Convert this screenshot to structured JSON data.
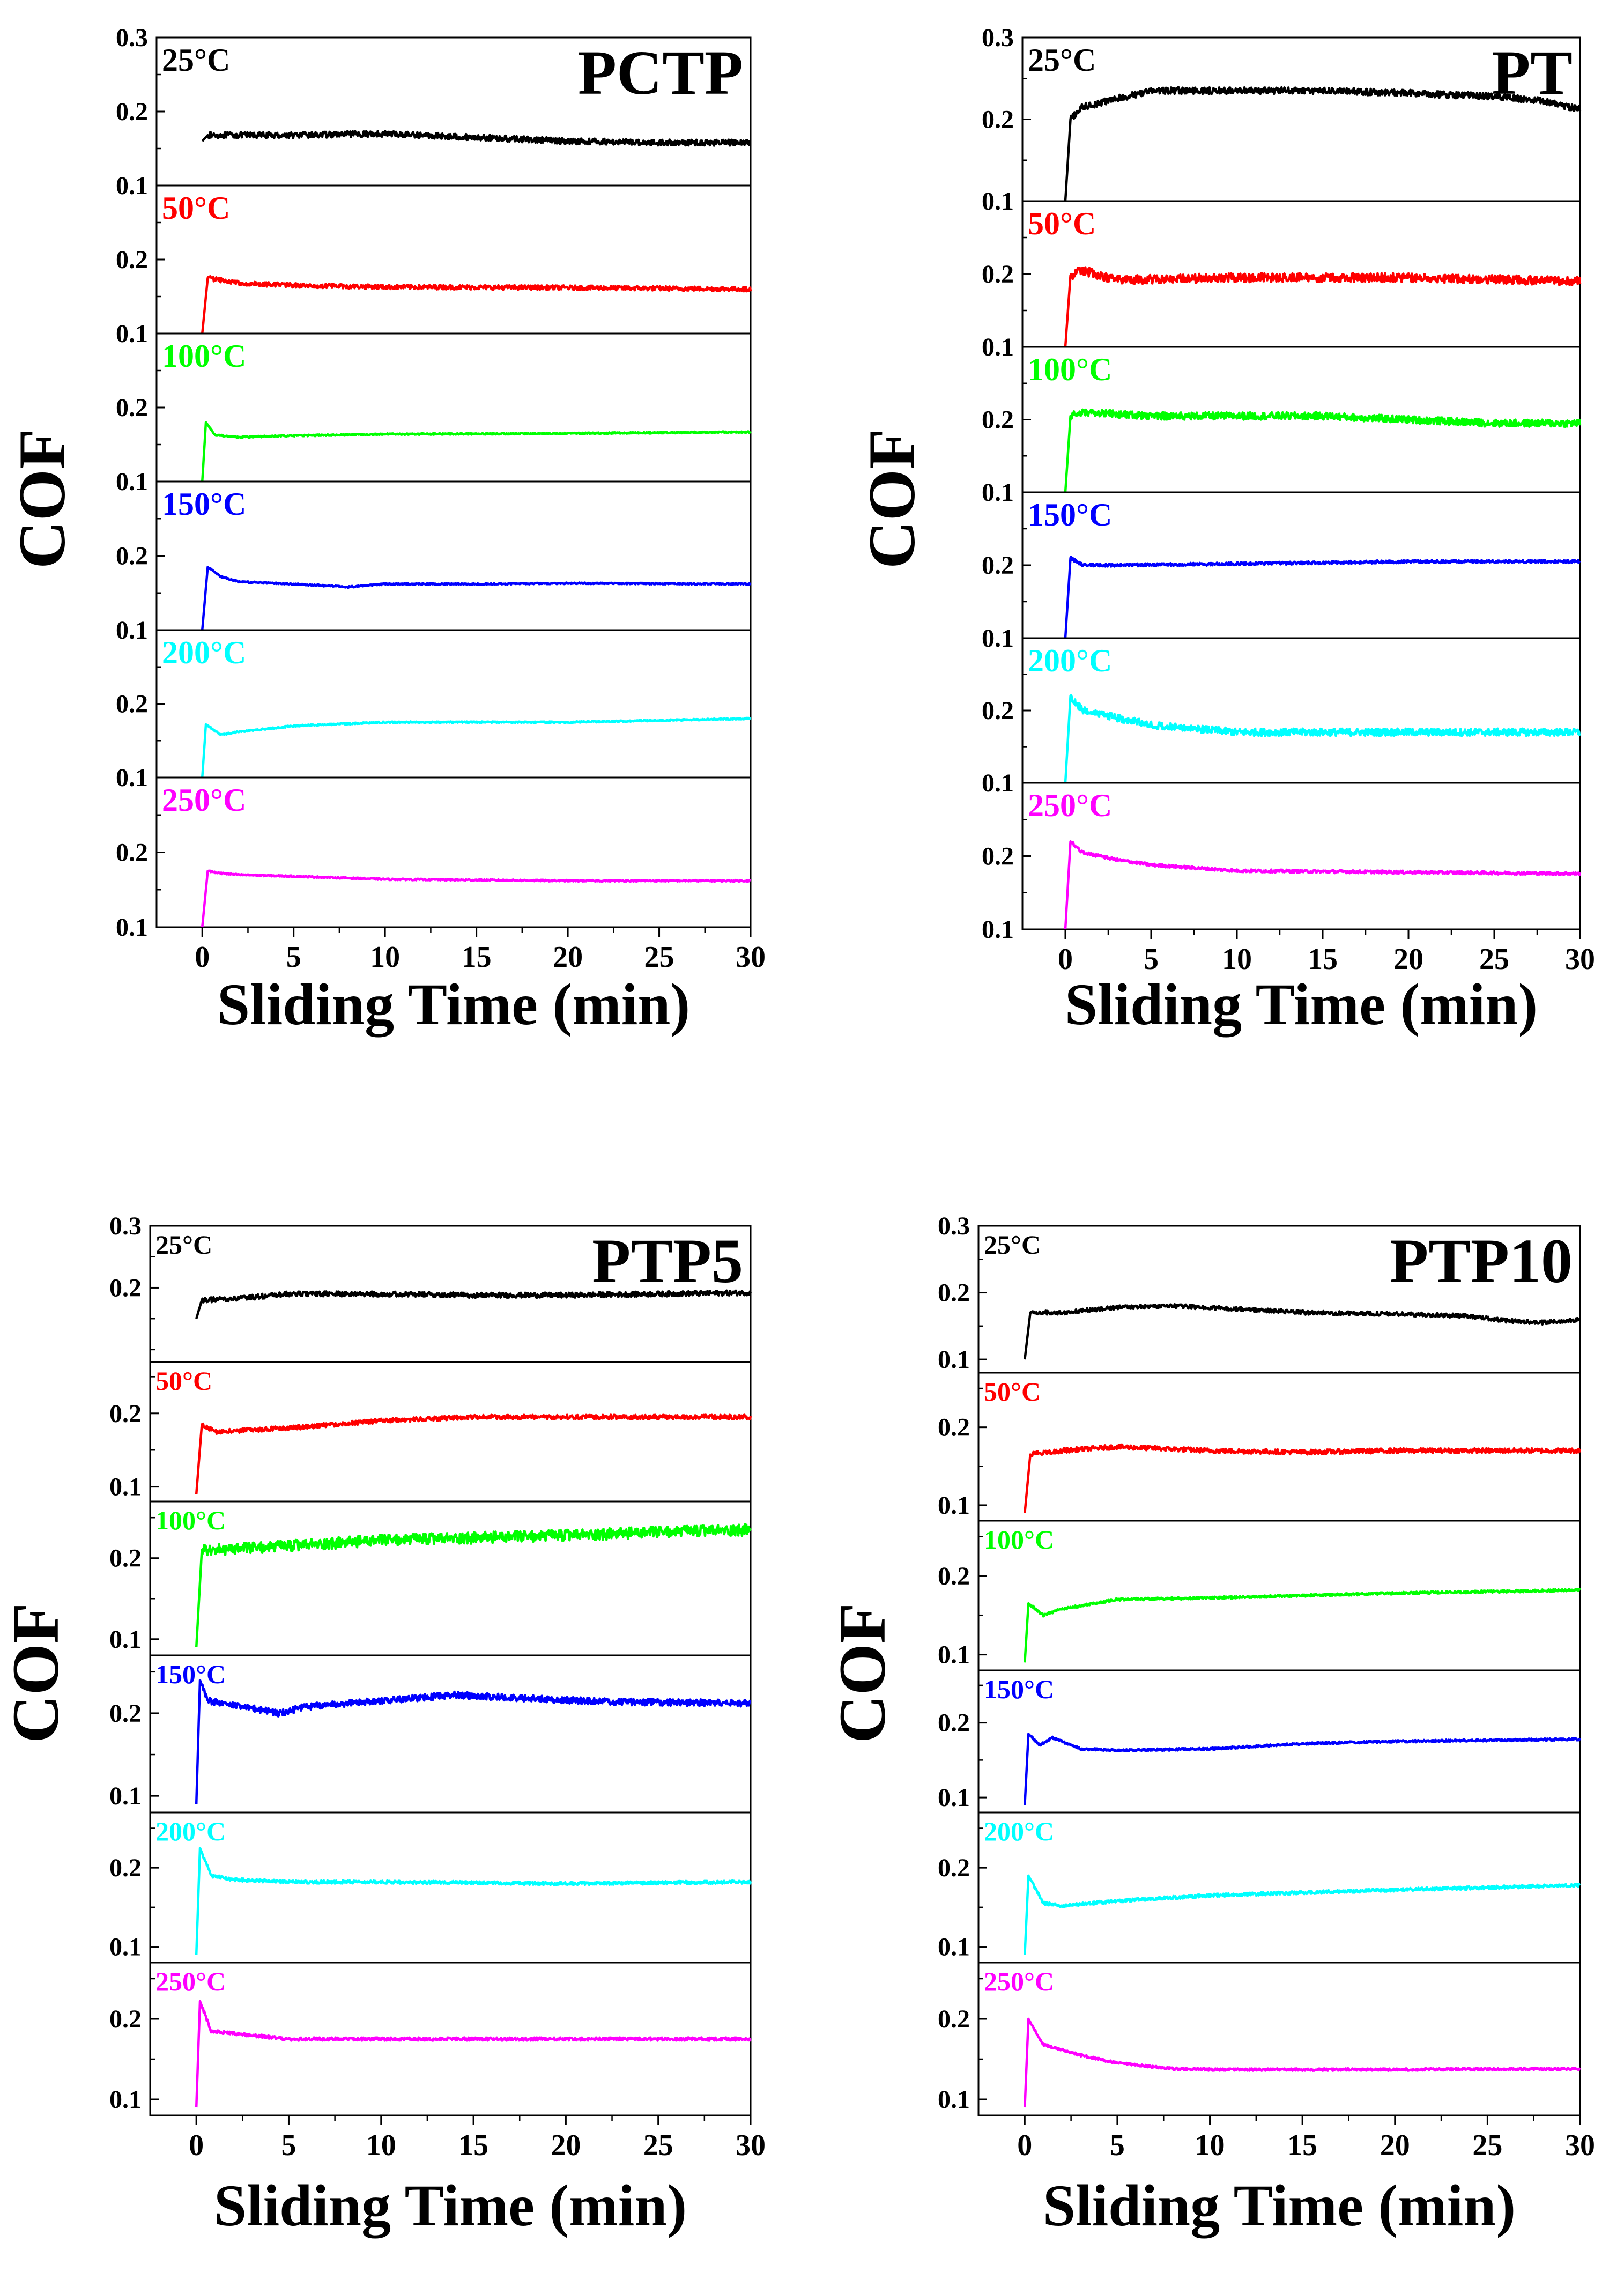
{
  "chart_data": [
    {
      "type": "line",
      "title": "PCTP",
      "xlabel": "Sliding Time (min)",
      "ylabel": "COF",
      "xlim": [
        -2.5,
        30
      ],
      "ylim": [
        0.1,
        0.3
      ],
      "xticks": [
        "0",
        "5",
        "10",
        "15",
        "20",
        "25",
        "30"
      ],
      "panel_ylims": [
        [
          0.1,
          0.3
        ],
        [
          0.1,
          0.3
        ],
        [
          0.1,
          0.3
        ],
        [
          0.1,
          0.3
        ],
        [
          0.1,
          0.3
        ],
        [
          0.1,
          0.3
        ]
      ],
      "panel_yticks": [
        [
          "0.1",
          "0.2",
          "0.3"
        ],
        [
          "0.1",
          "0.2"
        ],
        [
          "0.1",
          "0.2"
        ],
        [
          "0.1",
          "0.2"
        ],
        [
          "0.1",
          "0.2"
        ],
        [
          "0.1",
          "0.2"
        ]
      ],
      "series": [
        {
          "name": "25°C",
          "color": "#000000",
          "noise": 0.004,
          "x": [
            0,
            0.3,
            2,
            5,
            10,
            15,
            20,
            25,
            30
          ],
          "y": [
            0.16,
            0.168,
            0.168,
            0.168,
            0.17,
            0.165,
            0.16,
            0.158,
            0.158
          ]
        },
        {
          "name": "50°C",
          "color": "#ff0000",
          "noise": 0.003,
          "x": [
            0,
            0.3,
            1,
            2,
            5,
            10,
            20,
            30
          ],
          "y": [
            0.1,
            0.175,
            0.172,
            0.168,
            0.165,
            0.163,
            0.162,
            0.16
          ]
        },
        {
          "name": "100°C",
          "color": "#00ff00",
          "noise": 0.001,
          "x": [
            0,
            0.2,
            0.7,
            2,
            5,
            10,
            20,
            30
          ],
          "y": [
            0.1,
            0.18,
            0.163,
            0.16,
            0.162,
            0.164,
            0.165,
            0.167
          ]
        },
        {
          "name": "150°C",
          "color": "#0000ff",
          "noise": 0.001,
          "x": [
            0,
            0.3,
            1,
            2,
            5,
            8,
            10,
            15,
            20,
            30
          ],
          "y": [
            0.1,
            0.185,
            0.172,
            0.165,
            0.162,
            0.158,
            0.162,
            0.162,
            0.163,
            0.162
          ]
        },
        {
          "name": "200°C",
          "color": "#00ffff",
          "noise": 0.001,
          "x": [
            0,
            0.2,
            1,
            2,
            5,
            10,
            20,
            30
          ],
          "y": [
            0.1,
            0.172,
            0.158,
            0.162,
            0.17,
            0.175,
            0.175,
            0.18
          ]
        },
        {
          "name": "250°C",
          "color": "#ff00ff",
          "noise": 0.001,
          "x": [
            0,
            0.3,
            1,
            2,
            5,
            10,
            20,
            30
          ],
          "y": [
            0.1,
            0.175,
            0.172,
            0.17,
            0.168,
            0.164,
            0.162,
            0.162
          ]
        }
      ]
    },
    {
      "type": "line",
      "title": "PT",
      "xlabel": "Sliding Time (min)",
      "ylabel": "COF",
      "xlim": [
        -2.5,
        30
      ],
      "ylim": [
        0.1,
        0.3
      ],
      "xticks": [
        "0",
        "5",
        "10",
        "15",
        "20",
        "25",
        "30"
      ],
      "panel_ylims": [
        [
          0.1,
          0.3
        ],
        [
          0.1,
          0.3
        ],
        [
          0.1,
          0.3
        ],
        [
          0.1,
          0.3
        ],
        [
          0.1,
          0.3
        ],
        [
          0.1,
          0.3
        ]
      ],
      "panel_yticks": [
        [
          "0.1",
          "0.2",
          "0.3"
        ],
        [
          "0.1",
          "0.2"
        ],
        [
          "0.1",
          "0.2"
        ],
        [
          "0.1",
          "0.2"
        ],
        [
          "0.1",
          "0.2"
        ],
        [
          "0.1",
          "0.2"
        ]
      ],
      "series": [
        {
          "name": "25°C",
          "color": "#000000",
          "noise": 0.004,
          "x": [
            0,
            0.3,
            1,
            3,
            5,
            10,
            15,
            20,
            25,
            28,
            30
          ],
          "y": [
            0.1,
            0.2,
            0.215,
            0.225,
            0.235,
            0.235,
            0.235,
            0.232,
            0.228,
            0.222,
            0.212
          ]
        },
        {
          "name": "50°C",
          "color": "#ff0000",
          "noise": 0.006,
          "x": [
            0,
            0.3,
            1,
            3,
            10,
            20,
            30
          ],
          "y": [
            0.1,
            0.198,
            0.205,
            0.192,
            0.195,
            0.195,
            0.19
          ]
        },
        {
          "name": "100°C",
          "color": "#00ff00",
          "noise": 0.005,
          "x": [
            0,
            0.3,
            1,
            5,
            10,
            15,
            20,
            25,
            30
          ],
          "y": [
            0.1,
            0.205,
            0.21,
            0.205,
            0.205,
            0.205,
            0.2,
            0.195,
            0.195
          ]
        },
        {
          "name": "150°C",
          "color": "#0000ff",
          "noise": 0.002,
          "x": [
            0,
            0.3,
            1,
            3,
            10,
            20,
            30
          ],
          "y": [
            0.1,
            0.21,
            0.2,
            0.2,
            0.202,
            0.205,
            0.205
          ]
        },
        {
          "name": "200°C",
          "color": "#00ffff",
          "noise": 0.005,
          "x": [
            0,
            0.3,
            1,
            3,
            5,
            10,
            15,
            20,
            30
          ],
          "y": [
            0.1,
            0.22,
            0.2,
            0.19,
            0.18,
            0.17,
            0.17,
            0.17,
            0.17
          ]
        },
        {
          "name": "250°C",
          "color": "#ff00ff",
          "noise": 0.002,
          "x": [
            0,
            0.3,
            1,
            3,
            5,
            10,
            20,
            30
          ],
          "y": [
            0.1,
            0.22,
            0.205,
            0.195,
            0.188,
            0.18,
            0.178,
            0.176
          ]
        }
      ]
    },
    {
      "type": "line",
      "title": "PTP5",
      "xlabel": "Sliding Time (min)",
      "ylabel": "COF",
      "xlim": [
        -2.5,
        30
      ],
      "ylim": [
        0.08,
        0.3
      ],
      "xticks": [
        "0",
        "5",
        "10",
        "15",
        "20",
        "25",
        "30"
      ],
      "panel_ylims": [
        [
          0.08,
          0.3
        ],
        [
          0.08,
          0.27
        ],
        [
          0.08,
          0.27
        ],
        [
          0.08,
          0.27
        ],
        [
          0.08,
          0.27
        ],
        [
          0.08,
          0.27
        ]
      ],
      "panel_yticks": [
        [
          "0.2",
          "0.3"
        ],
        [
          "0.1",
          "0.2"
        ],
        [
          "0.1",
          "0.2"
        ],
        [
          "0.1",
          "0.2"
        ],
        [
          "0.1",
          "0.2"
        ],
        [
          "0.1",
          "0.2"
        ]
      ],
      "series": [
        {
          "name": "25°C",
          "color": "#000000",
          "noise": 0.004,
          "x": [
            0,
            0.3,
            2,
            5,
            10,
            15,
            20,
            25,
            30
          ],
          "y": [
            0.15,
            0.18,
            0.182,
            0.19,
            0.19,
            0.188,
            0.188,
            0.19,
            0.192
          ]
        },
        {
          "name": "50°C",
          "color": "#ff0000",
          "noise": 0.003,
          "x": [
            0,
            0.3,
            1,
            5,
            10,
            15,
            20,
            30
          ],
          "y": [
            0.09,
            0.185,
            0.175,
            0.18,
            0.19,
            0.195,
            0.195,
            0.195
          ]
        },
        {
          "name": "100°C",
          "color": "#00ff00",
          "noise": 0.007,
          "x": [
            0,
            0.3,
            1,
            5,
            10,
            15,
            20,
            25,
            30
          ],
          "y": [
            0.09,
            0.21,
            0.21,
            0.215,
            0.222,
            0.225,
            0.228,
            0.232,
            0.235
          ]
        },
        {
          "name": "150°C",
          "color": "#0000ff",
          "noise": 0.004,
          "x": [
            0,
            0.2,
            0.6,
            2,
            4.5,
            6,
            10,
            14,
            18,
            22,
            30
          ],
          "y": [
            0.09,
            0.24,
            0.215,
            0.21,
            0.2,
            0.208,
            0.215,
            0.222,
            0.218,
            0.214,
            0.212
          ]
        },
        {
          "name": "200°C",
          "color": "#00ffff",
          "noise": 0.002,
          "x": [
            0,
            0.2,
            0.8,
            2,
            5,
            10,
            20,
            30
          ],
          "y": [
            0.09,
            0.225,
            0.19,
            0.185,
            0.182,
            0.182,
            0.18,
            0.182
          ]
        },
        {
          "name": "250°C",
          "color": "#ff00ff",
          "noise": 0.002,
          "x": [
            0,
            0.2,
            0.8,
            2,
            5,
            10,
            20,
            30
          ],
          "y": [
            0.09,
            0.222,
            0.185,
            0.182,
            0.175,
            0.175,
            0.175,
            0.175
          ]
        }
      ]
    },
    {
      "type": "line",
      "title": "PTP10",
      "xlabel": "Sliding Time (min)",
      "ylabel": "COF",
      "xlim": [
        -2.5,
        30
      ],
      "ylim": [
        0.08,
        0.3
      ],
      "xticks": [
        "0",
        "5",
        "10",
        "15",
        "20",
        "25",
        "30"
      ],
      "panel_ylims": [
        [
          0.08,
          0.3
        ],
        [
          0.08,
          0.27
        ],
        [
          0.08,
          0.27
        ],
        [
          0.08,
          0.27
        ],
        [
          0.08,
          0.27
        ],
        [
          0.08,
          0.27
        ]
      ],
      "panel_yticks": [
        [
          "0.1",
          "0.2",
          "0.3"
        ],
        [
          "0.1",
          "0.2"
        ],
        [
          "0.1",
          "0.2"
        ],
        [
          "0.1",
          "0.2"
        ],
        [
          "0.1",
          "0.2"
        ],
        [
          "0.1",
          "0.2"
        ]
      ],
      "series": [
        {
          "name": "25°C",
          "color": "#000000",
          "noise": 0.003,
          "x": [
            0,
            0.3,
            2,
            5,
            8,
            12,
            15,
            20,
            24,
            26,
            28,
            30
          ],
          "y": [
            0.1,
            0.17,
            0.17,
            0.178,
            0.18,
            0.175,
            0.17,
            0.168,
            0.165,
            0.158,
            0.155,
            0.16
          ]
        },
        {
          "name": "50°C",
          "color": "#ff0000",
          "noise": 0.003,
          "x": [
            0,
            0.3,
            2,
            5,
            10,
            15,
            20,
            30
          ],
          "y": [
            0.09,
            0.165,
            0.17,
            0.175,
            0.17,
            0.168,
            0.17,
            0.17
          ]
        },
        {
          "name": "100°C",
          "color": "#00ff00",
          "noise": 0.0015,
          "x": [
            0,
            0.2,
            1,
            2,
            5,
            10,
            20,
            30
          ],
          "y": [
            0.09,
            0.165,
            0.15,
            0.158,
            0.17,
            0.172,
            0.178,
            0.182
          ]
        },
        {
          "name": "150°C",
          "color": "#0000ff",
          "noise": 0.0015,
          "x": [
            0,
            0.2,
            0.8,
            1.5,
            3,
            5,
            10,
            15,
            20,
            30
          ],
          "y": [
            0.09,
            0.185,
            0.17,
            0.18,
            0.165,
            0.163,
            0.165,
            0.172,
            0.175,
            0.178
          ]
        },
        {
          "name": "200°C",
          "color": "#00ffff",
          "noise": 0.002,
          "x": [
            0,
            0.2,
            1,
            2,
            5,
            10,
            20,
            30
          ],
          "y": [
            0.09,
            0.19,
            0.155,
            0.152,
            0.158,
            0.165,
            0.172,
            0.178
          ]
        },
        {
          "name": "250°C",
          "color": "#ff00ff",
          "noise": 0.0015,
          "x": [
            0,
            0.2,
            1,
            3,
            5,
            8,
            10,
            20,
            30
          ],
          "y": [
            0.09,
            0.2,
            0.168,
            0.155,
            0.145,
            0.138,
            0.137,
            0.137,
            0.138
          ]
        }
      ]
    }
  ]
}
